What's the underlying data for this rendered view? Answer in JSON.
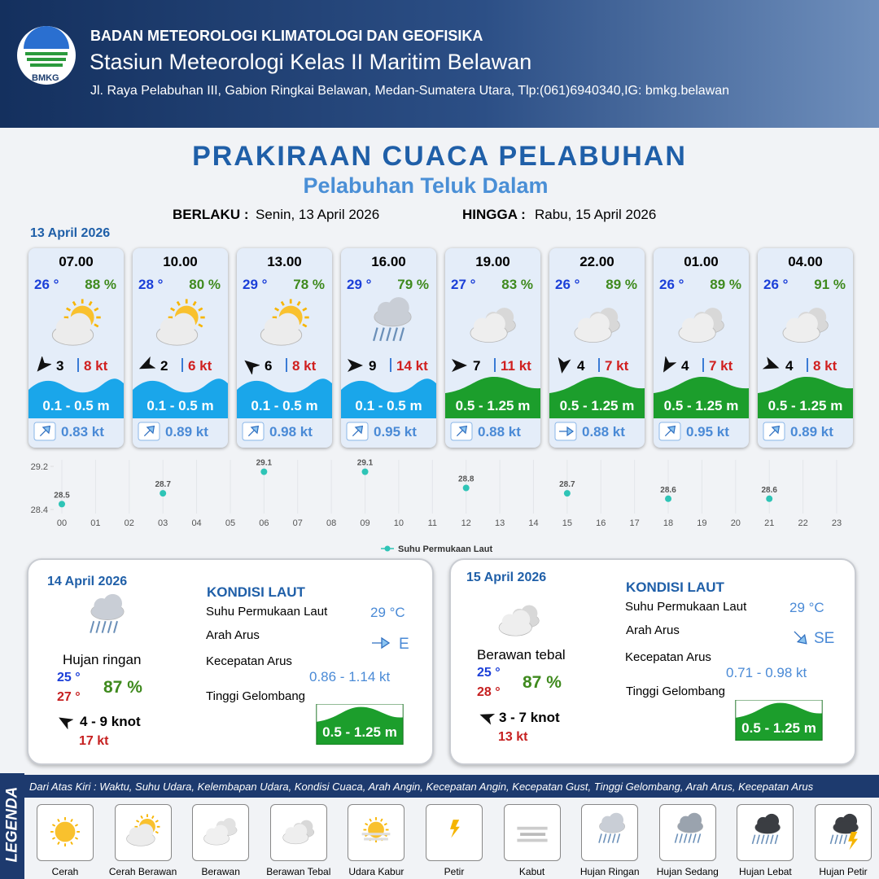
{
  "header": {
    "logo": "BMKG",
    "agency": "BADAN METEOROLOGI KLIMATOLOGI DAN GEOFISIKA",
    "station": "Stasiun Meteorologi Kelas II Maritim Belawan",
    "address": "Jl. Raya Pelabuhan III, Gabion Ringkai Belawan, Medan-Sumatera Utara, Tlp:(061)6940340,IG: bmkg.belawan"
  },
  "title": "PRAKIRAAN CUACA PELABUHAN",
  "subtitle": "Pelabuhan Teluk Dalam",
  "validity": {
    "from_label": "BERLAKU :",
    "from": "Senin, 13 April 2026",
    "to_label": "HINGGA :",
    "to": "Rabu, 15 April 2026"
  },
  "today": {
    "date": "13 April 2026",
    "slots": [
      {
        "time": "07.00",
        "temperature": "26 °",
        "humidity": "88 %",
        "wind": "3",
        "gust": "8 kt",
        "wave": "0.1 - 0.5 m",
        "current": "0.83 kt"
      },
      {
        "time": "10.00",
        "temperature": "28 °",
        "humidity": "80 %",
        "wind": "2",
        "gust": "6 kt",
        "wave": "0.1 - 0.5 m",
        "current": "0.89 kt"
      },
      {
        "time": "13.00",
        "temperature": "29 °",
        "humidity": "78 %",
        "wind": "6",
        "gust": "8 kt",
        "wave": "0.1 - 0.5 m",
        "current": "0.98 kt"
      },
      {
        "time": "16.00",
        "temperature": "29 °",
        "humidity": "79 %",
        "wind": "9",
        "gust": "14 kt",
        "wave": "0.1 - 0.5 m",
        "current": "0.95 kt"
      },
      {
        "time": "19.00",
        "temperature": "27 °",
        "humidity": "83 %",
        "wind": "7",
        "gust": "11 kt",
        "wave": "0.5 - 1.25 m",
        "current": "0.88 kt"
      },
      {
        "time": "22.00",
        "temperature": "26 °",
        "humidity": "89 %",
        "wind": "4",
        "gust": "7 kt",
        "wave": "0.5 - 1.25 m",
        "current": "0.88 kt"
      },
      {
        "time": "01.00",
        "temperature": "26 °",
        "humidity": "89 %",
        "wind": "4",
        "gust": "7 kt",
        "wave": "0.5 - 1.25 m",
        "current": "0.95 kt"
      },
      {
        "time": "04.00",
        "temperature": "26 °",
        "humidity": "91 %",
        "wind": "4",
        "gust": "8 kt",
        "wave": "0.5 - 1.25 m",
        "current": "0.89 kt"
      }
    ]
  },
  "chart_data": {
    "type": "scatter",
    "x": [
      0,
      3,
      6,
      9,
      12,
      15,
      18,
      21
    ],
    "series": [
      {
        "name": "Suhu Permukaan Laut",
        "color": "#2ec4b6",
        "values": [
          28.5,
          28.7,
          29.1,
          29.1,
          28.8,
          28.7,
          28.6,
          28.6
        ]
      }
    ],
    "xlim": [
      0,
      23
    ],
    "xticks": [
      {
        "value": 0,
        "label": "00"
      },
      {
        "value": 1,
        "label": "01"
      },
      {
        "value": 2,
        "label": "02"
      },
      {
        "value": 3,
        "label": "03"
      },
      {
        "value": 4,
        "label": "04"
      },
      {
        "value": 5,
        "label": "05"
      },
      {
        "value": 6,
        "label": "06"
      },
      {
        "value": 7,
        "label": "07"
      },
      {
        "value": 8,
        "label": "08"
      },
      {
        "value": 9,
        "label": "09"
      },
      {
        "value": 10,
        "label": "10"
      },
      {
        "value": 11,
        "label": "11"
      },
      {
        "value": 12,
        "label": "12"
      },
      {
        "value": 13,
        "label": "13"
      },
      {
        "value": 14,
        "label": "14"
      },
      {
        "value": 15,
        "label": "15"
      },
      {
        "value": 16,
        "label": "16"
      },
      {
        "value": 17,
        "label": "17"
      },
      {
        "value": 18,
        "label": "18"
      },
      {
        "value": 19,
        "label": "19"
      },
      {
        "value": 20,
        "label": "20"
      },
      {
        "value": 21,
        "label": "21"
      },
      {
        "value": 22,
        "label": "22"
      },
      {
        "value": 23,
        "label": "23"
      }
    ],
    "ylim": [
      28.4,
      29.2
    ],
    "yticks": [
      28.4,
      29.2
    ]
  },
  "outlook": [
    {
      "date": "14 April 2026",
      "weather": "Hujan ringan",
      "temp_min": "25 °",
      "temp_max": "27 °",
      "humidity": "87 %",
      "wind": "4 - 9 knot",
      "gust": "17 kt",
      "conditions": {
        "title": "KONDISI LAUT",
        "rows": [
          {
            "label": "Suhu Permukaan Laut",
            "value": "29 °C"
          },
          {
            "label": "Arah Arus",
            "value": "E"
          },
          {
            "label": "Kecepatan Arus",
            "value": "0.86 - 1.14 kt"
          },
          {
            "label": "Tinggi Gelombang",
            "value": "0.5 - 1.25 m"
          }
        ]
      }
    },
    {
      "date": "15 April 2026",
      "weather": "Berawan tebal",
      "temp_min": "25 °",
      "temp_max": "28 °",
      "humidity": "87 %",
      "wind": "3 - 7 knot",
      "gust": "13 kt",
      "conditions": {
        "title": "KONDISI LAUT",
        "rows": [
          {
            "label": "Suhu Permukaan Laut",
            "value": "29 °C"
          },
          {
            "label": "Arah Arus",
            "value": "SE"
          },
          {
            "label": "Kecepatan Arus",
            "value": "0.71 - 0.98 kt"
          },
          {
            "label": "Tinggi Gelombang",
            "value": "0.5 - 1.25 m"
          }
        ]
      }
    }
  ],
  "legend": {
    "title": "LEGENDA",
    "description": "Dari Atas Kiri : Waktu, Suhu Udara, Kelembapan Udara, Kondisi Cuaca, Arah Angin, Kecepatan Angin, Kecepatan Gust, Tinggi Gelombang, Arah Arus, Kecepatan Arus",
    "items": [
      "Cerah",
      "Cerah Berawan",
      "Berawan",
      "Berawan Tebal",
      "Udara Kabur",
      "Petir",
      "Kabut",
      "Hujan Ringan",
      "Hujan Sedang",
      "Hujan Lebat",
      "Hujan Petir"
    ]
  }
}
